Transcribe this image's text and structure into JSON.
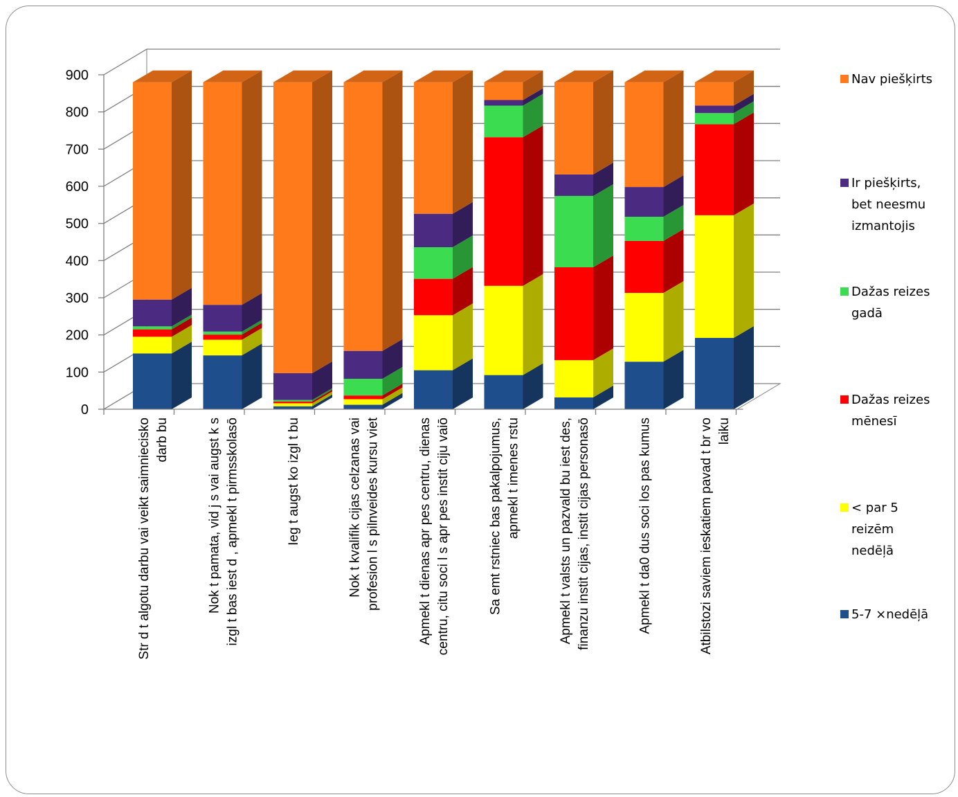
{
  "chart_data": {
    "type": "bar",
    "stacked": true,
    "three_d": true,
    "ylim": [
      0,
      900
    ],
    "yticks": [
      0,
      100,
      200,
      300,
      400,
      500,
      600,
      700,
      800,
      900
    ],
    "grid": true,
    "legend_position": "right",
    "categories": [
      [
        "Str d t algotu darbu vai veikt saimniecisko",
        "darb bu"
      ],
      [
        "Nok t pamata, vid j s vai augst k s",
        "izgl t bas iest d , apmekl t pirmsskolasō"
      ],
      [
        "Ieg t augst ko izgl t bu"
      ],
      [
        "Nok t kvalifik cijas celzanas vai",
        "profesion l s pilnveides kursu viet"
      ],
      [
        "Apmekl t dienas apr pes centru, dienas",
        "centru, citu soci l s apr pes instit ciju vaiō"
      ],
      [
        "Sa emt rstniec bas pakalpojumus,",
        "apmekl t imenes rstu"
      ],
      [
        "Apmekl t valsts un pazvald bu iest des,",
        "finanzu instit cijas, instit cijas personasō"
      ],
      [
        "Apmekl t da0 dus soci los pas kumus"
      ],
      [
        "Atbilstozi saviem ieskatiem pavad t br vo",
        "laiku"
      ]
    ],
    "series": [
      {
        "name": "5-7 ×nedēļā",
        "color": "#1f4e8c",
        "values": [
          150,
          145,
          8,
          12,
          105,
          92,
          32,
          128,
          192
        ]
      },
      {
        "name": "< par 5 reizēm nedēļā",
        "color": "#ffff00",
        "values": [
          45,
          42,
          8,
          15,
          148,
          240,
          100,
          185,
          330
        ]
      },
      {
        "name": "Dažas reizes mēnesī",
        "color": "#ff0000",
        "values": [
          20,
          14,
          5,
          10,
          98,
          400,
          250,
          140,
          245
        ]
      },
      {
        "name": "Dažas reizes gadā",
        "color": "#3cdc50",
        "values": [
          8,
          8,
          4,
          45,
          85,
          85,
          192,
          65,
          30
        ]
      },
      {
        "name": "Ir piešķirts, bet neesmu izmantojis",
        "color": "#4b2a82",
        "values": [
          72,
          72,
          72,
          75,
          90,
          15,
          58,
          80,
          20
        ]
      },
      {
        "name": "Nav piešķirts",
        "color": "#ff7a1a",
        "values": [
          585,
          599,
          783,
          723,
          354,
          48,
          248,
          282,
          63
        ]
      }
    ],
    "legend_items": [
      {
        "lines": [
          "Nav piešķirts"
        ],
        "color": "#ff7a1a"
      },
      {
        "lines": [
          "Ir piešķirts,",
          "bet neesmu",
          "izmantojis"
        ],
        "color": "#4b2a82"
      },
      {
        "lines": [
          "Dažas reizes",
          "gadā"
        ],
        "color": "#3cdc50"
      },
      {
        "lines": [
          "Dažas reizes",
          "mēnesī"
        ],
        "color": "#ff0000"
      },
      {
        "lines": [
          "< par 5",
          "reizēm",
          "nedēļā"
        ],
        "color": "#ffff00"
      },
      {
        "lines": [
          "5-7 ×nedēļā"
        ],
        "color": "#1f4e8c"
      }
    ]
  }
}
